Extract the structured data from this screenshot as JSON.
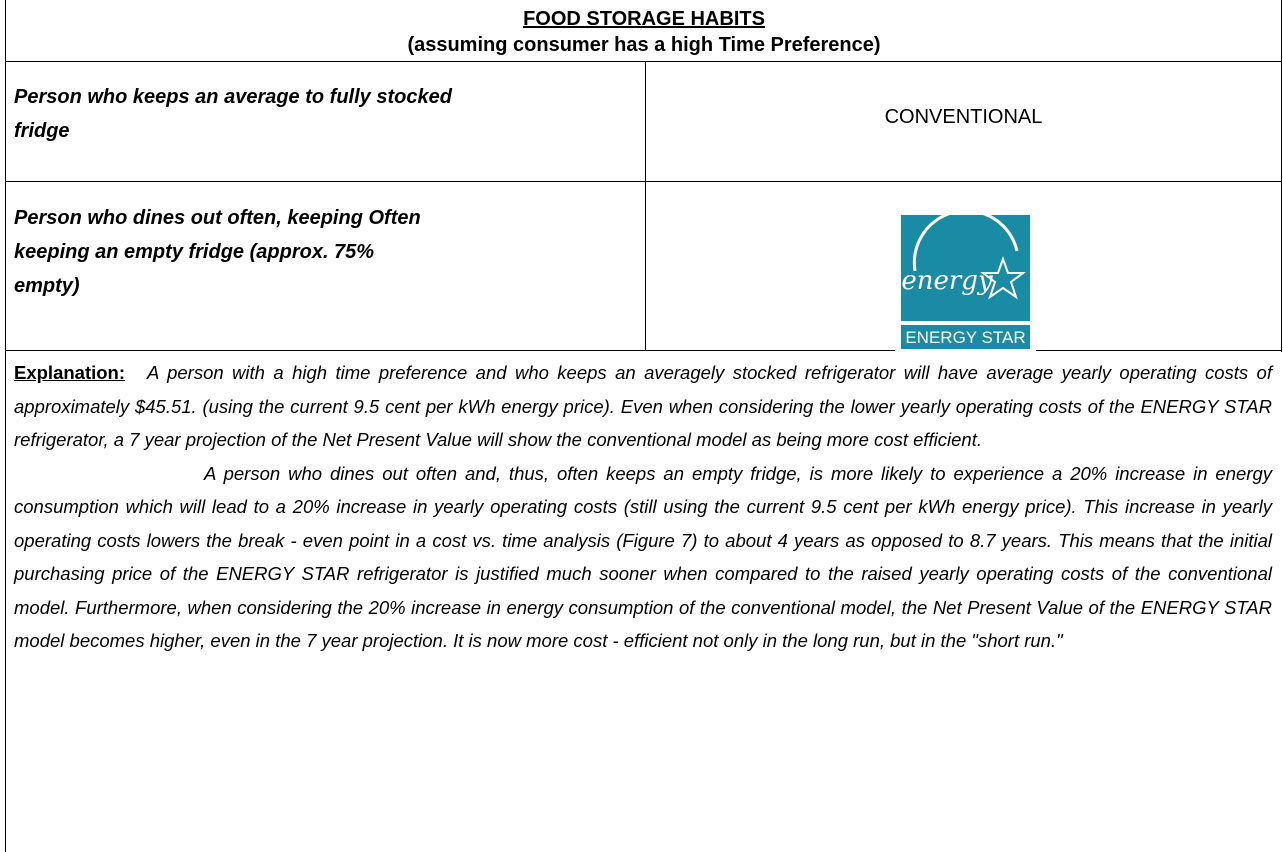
{
  "header": {
    "title": "FOOD STORAGE HABITS",
    "subtitle": "(assuming consumer has a high Time Preference)"
  },
  "table": {
    "rows": [
      [
        "Person who keeps an average to fully stocked fridge",
        "CONVENTIONAL"
      ],
      [
        "Person who dines out often, keeping Often keeping an empty fridge (approx. 75% empty)",
        ""
      ]
    ]
  },
  "logo": {
    "script": "energy",
    "wordmark": "ENERGY STAR"
  },
  "explanation": {
    "label": "Explanation:",
    "paragraphs": [
      "A person with a high time preference and who keeps an averagely stocked refrigerator will have average yearly operating costs of approximately $45.51. (using the current 9.5 cent per kWh energy price).  Even when considering the lower yearly operating costs of the ENERGY STAR refrigerator, a 7 year projection of the Net Present Value will show the conventional model as being more cost efficient.",
      "A person who dines out often and, thus, often keeps an empty fridge, is more likely to experience a 20% increase in energy consumption which will lead to a 20% increase in yearly operating costs (still using the current 9.5 cent per kWh energy price).  This increase in yearly operating costs lowers the break - even point in a cost vs. time analysis (Figure 7) to about 4 years as opposed to 8.7 years.  This means that the initial purchasing price of the ENERGY STAR refrigerator is justified much sooner when compared to the raised yearly operating costs of the conventional model.  Furthermore, when considering the 20% increase in energy consumption of the conventional model, the Net Present Value of the ENERGY STAR model becomes higher, even in the 7 year projection.  It is now more cost - efficient not only in the long run, but in the \"short run.\""
    ]
  }
}
